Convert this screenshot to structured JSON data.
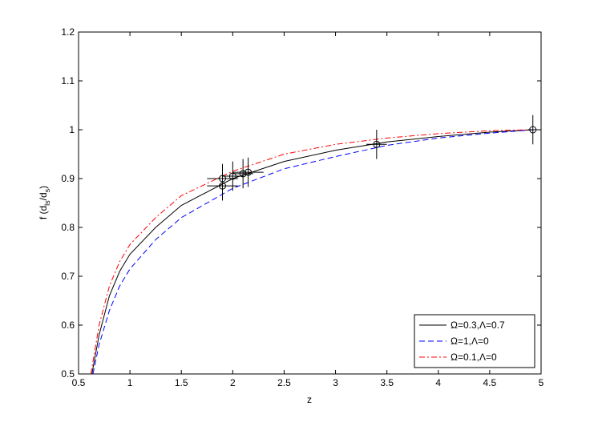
{
  "chart_data": {
    "type": "line",
    "xlabel": "z",
    "ylabel": [
      "f (d",
      "ls",
      "/d",
      "s",
      ")"
    ],
    "xlim": [
      0.5,
      5
    ],
    "xticks": [
      0.5,
      1,
      1.5,
      2,
      2.5,
      3,
      3.5,
      4,
      4.5,
      5
    ],
    "ylim": [
      0.5,
      1.2
    ],
    "yticks": [
      0.5,
      0.6,
      0.7,
      0.8,
      0.9,
      1,
      1.1,
      1.2
    ],
    "grid": false,
    "legend": "lower right",
    "series": [
      {
        "name": "Ω=0.3,Λ=0.7",
        "color": "#000000",
        "dash": "solid",
        "x": [
          0.63,
          0.7,
          0.8,
          0.9,
          1.0,
          1.25,
          1.5,
          2.0,
          2.5,
          3.0,
          3.5,
          4.0,
          4.5,
          4.93
        ],
        "values": [
          0.5,
          0.58,
          0.66,
          0.71,
          0.745,
          0.8,
          0.845,
          0.9,
          0.935,
          0.958,
          0.975,
          0.986,
          0.995,
          1.0
        ]
      },
      {
        "name": "Ω=1,Λ=0",
        "color": "#0000ff",
        "dash": "dashed",
        "x": [
          0.64,
          0.7,
          0.8,
          0.9,
          1.0,
          1.25,
          1.5,
          2.0,
          2.5,
          3.0,
          3.5,
          4.0,
          4.5,
          4.93
        ],
        "values": [
          0.5,
          0.56,
          0.63,
          0.68,
          0.715,
          0.775,
          0.82,
          0.88,
          0.92,
          0.945,
          0.968,
          0.983,
          0.993,
          1.0
        ]
      },
      {
        "name": "Ω=0.1,Λ=0",
        "color": "#ff0000",
        "dash": "dashdot",
        "x": [
          0.62,
          0.7,
          0.8,
          0.9,
          1.0,
          1.25,
          1.5,
          2.0,
          2.5,
          3.0,
          3.5,
          4.0,
          4.5,
          4.93
        ],
        "values": [
          0.5,
          0.6,
          0.68,
          0.73,
          0.765,
          0.82,
          0.865,
          0.915,
          0.95,
          0.97,
          0.983,
          0.992,
          0.998,
          1.0
        ]
      }
    ],
    "points": {
      "color": "#000000",
      "x": [
        1.9,
        1.9,
        2.0,
        2.1,
        2.15,
        3.4,
        4.92
      ],
      "values": [
        0.885,
        0.9,
        0.905,
        0.91,
        0.913,
        0.97,
        1.0
      ],
      "xerr": [
        0.15,
        0.15,
        0.1,
        0.1,
        0.15,
        0.1,
        0.05
      ],
      "yerr": [
        0.03,
        0.03,
        0.03,
        0.03,
        0.03,
        0.03,
        0.03
      ]
    }
  }
}
